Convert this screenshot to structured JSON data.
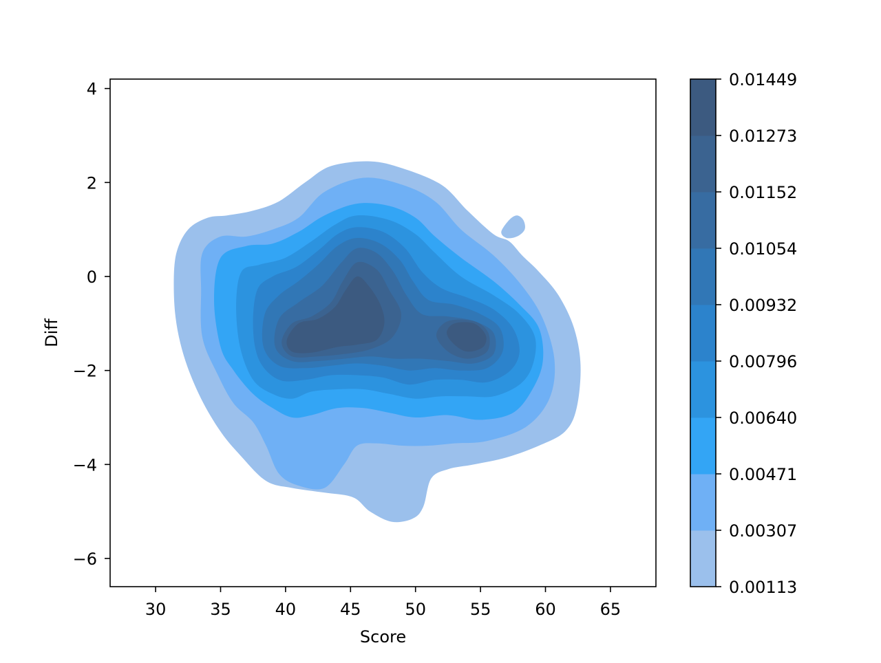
{
  "chart_data": {
    "type": "contour",
    "subtype": "filled-kde-2d",
    "title": "",
    "xlabel": "Score",
    "ylabel": "Diff",
    "xlim": [
      26.5,
      68.5
    ],
    "ylim": [
      -6.6,
      4.2
    ],
    "xticks": [
      30,
      35,
      40,
      45,
      50,
      55,
      60,
      65
    ],
    "yticks": [
      4,
      2,
      0,
      -2,
      -4,
      -6
    ],
    "xtick_labels": [
      "30",
      "35",
      "40",
      "45",
      "50",
      "55",
      "60",
      "65"
    ],
    "ytick_labels": [
      "4",
      "2",
      "0",
      "−2",
      "−4",
      "−6"
    ],
    "grid": false,
    "colorbar": {
      "levels": [
        0.00113,
        0.00307,
        0.00471,
        0.0064,
        0.00796,
        0.00932,
        0.01054,
        0.01152,
        0.01273,
        0.01449
      ],
      "tick_labels": [
        "0.00113",
        "0.00307",
        "0.00471",
        "0.00640",
        "0.00796",
        "0.00932",
        "0.01054",
        "0.01152",
        "0.01273",
        "0.01449"
      ],
      "colors": [
        "#9bc0ec",
        "#6fb0f5",
        "#33a5f5",
        "#2c93df",
        "#2c83cc",
        "#3177b6",
        "#376ca2",
        "#3b6390",
        "#3c5a80"
      ]
    },
    "contours": [
      {
        "level": 0.00113,
        "color": "#9bc0ec",
        "polygons": [
          [
            [
              46.5,
              2.45
            ],
            [
              49,
              2.3
            ],
            [
              52,
              1.95
            ],
            [
              54,
              1.4
            ],
            [
              56,
              0.9
            ],
            [
              57.2,
              0.75
            ],
            [
              58.2,
              0.45
            ],
            [
              59.5,
              0.1
            ],
            [
              61,
              -0.4
            ],
            [
              62.2,
              -1.1
            ],
            [
              62.7,
              -1.9
            ],
            [
              62.4,
              -2.8
            ],
            [
              61.5,
              -3.3
            ],
            [
              59.5,
              -3.6
            ],
            [
              57,
              -3.85
            ],
            [
              54.5,
              -4.0
            ],
            [
              52.5,
              -4.1
            ],
            [
              51.2,
              -4.3
            ],
            [
              50.6,
              -4.9
            ],
            [
              49.8,
              -5.15
            ],
            [
              48.2,
              -5.22
            ],
            [
              46.5,
              -5.0
            ],
            [
              45.2,
              -4.7
            ],
            [
              43,
              -4.6
            ],
            [
              40.5,
              -4.5
            ],
            [
              38.5,
              -4.35
            ],
            [
              36.5,
              -3.8
            ],
            [
              35,
              -3.3
            ],
            [
              33.5,
              -2.6
            ],
            [
              32.3,
              -1.8
            ],
            [
              31.6,
              -1.0
            ],
            [
              31.4,
              -0.2
            ],
            [
              31.6,
              0.5
            ],
            [
              32.5,
              1.0
            ],
            [
              34,
              1.25
            ],
            [
              35.5,
              1.3
            ],
            [
              37.5,
              1.4
            ],
            [
              39.5,
              1.6
            ],
            [
              41.5,
              2.0
            ],
            [
              43.5,
              2.35
            ]
          ],
          [
            [
              56.6,
              0.95
            ],
            [
              57.2,
              1.2
            ],
            [
              57.8,
              1.3
            ],
            [
              58.3,
              1.2
            ],
            [
              58.4,
              1.0
            ],
            [
              57.8,
              0.85
            ],
            [
              57.0,
              0.82
            ]
          ]
        ]
      },
      {
        "level": 0.00307,
        "color": "#6fb0f5",
        "polygons": [
          [
            [
              46,
              2.1
            ],
            [
              49,
              1.95
            ],
            [
              51.5,
              1.6
            ],
            [
              53.5,
              1.0
            ],
            [
              56,
              0.45
            ],
            [
              58.2,
              -0.2
            ],
            [
              59.8,
              -0.9
            ],
            [
              60.7,
              -1.8
            ],
            [
              60.3,
              -2.6
            ],
            [
              58.5,
              -3.2
            ],
            [
              55.5,
              -3.5
            ],
            [
              53,
              -3.55
            ],
            [
              51,
              -3.6
            ],
            [
              49,
              -3.6
            ],
            [
              47,
              -3.55
            ],
            [
              45.5,
              -3.6
            ],
            [
              44.5,
              -4.0
            ],
            [
              43,
              -4.5
            ],
            [
              41,
              -4.45
            ],
            [
              39.5,
              -4.2
            ],
            [
              38.5,
              -3.6
            ],
            [
              37.5,
              -3.1
            ],
            [
              36,
              -2.7
            ],
            [
              34.8,
              -2.1
            ],
            [
              33.6,
              -1.3
            ],
            [
              33.5,
              -0.3
            ],
            [
              33.6,
              0.5
            ],
            [
              35,
              0.85
            ],
            [
              37,
              0.85
            ],
            [
              39,
              1.0
            ],
            [
              41,
              1.25
            ],
            [
              43,
              1.8
            ]
          ]
        ]
      },
      {
        "level": 0.00471,
        "color": "#33a5f5",
        "polygons": [
          [
            [
              45.5,
              1.55
            ],
            [
              48,
              1.5
            ],
            [
              50,
              1.25
            ],
            [
              51.5,
              0.85
            ],
            [
              53.5,
              0.4
            ],
            [
              56,
              -0.1
            ],
            [
              58,
              -0.6
            ],
            [
              59.5,
              -1.1
            ],
            [
              59.8,
              -1.8
            ],
            [
              59,
              -2.4
            ],
            [
              57.5,
              -2.9
            ],
            [
              55,
              -3.05
            ],
            [
              52.5,
              -2.95
            ],
            [
              50,
              -3.0
            ],
            [
              48,
              -2.9
            ],
            [
              46,
              -2.8
            ],
            [
              44,
              -2.8
            ],
            [
              42,
              -2.95
            ],
            [
              40.5,
              -3.0
            ],
            [
              39,
              -2.8
            ],
            [
              37.5,
              -2.5
            ],
            [
              36,
              -2.0
            ],
            [
              35,
              -1.5
            ],
            [
              34.5,
              -0.5
            ],
            [
              35,
              0.4
            ],
            [
              37,
              0.65
            ],
            [
              39,
              0.7
            ],
            [
              41,
              0.95
            ],
            [
              43,
              1.3
            ]
          ]
        ]
      },
      {
        "level": 0.0064,
        "color": "#2c93df",
        "polygons": [
          [
            [
              45.5,
              1.3
            ],
            [
              48,
              1.2
            ],
            [
              50,
              0.9
            ],
            [
              51.5,
              0.5
            ],
            [
              53.5,
              0.0
            ],
            [
              56,
              -0.4
            ],
            [
              58,
              -0.8
            ],
            [
              59.2,
              -1.3
            ],
            [
              59,
              -1.9
            ],
            [
              58,
              -2.3
            ],
            [
              56,
              -2.55
            ],
            [
              54,
              -2.55
            ],
            [
              52,
              -2.55
            ],
            [
              50,
              -2.6
            ],
            [
              48,
              -2.5
            ],
            [
              46,
              -2.4
            ],
            [
              44,
              -2.4
            ],
            [
              42,
              -2.45
            ],
            [
              40.5,
              -2.6
            ],
            [
              39,
              -2.5
            ],
            [
              37.5,
              -2.2
            ],
            [
              36.5,
              -1.5
            ],
            [
              36.2,
              -0.6
            ],
            [
              36.6,
              0.1
            ],
            [
              38,
              0.25
            ],
            [
              40,
              0.4
            ],
            [
              42,
              0.75
            ],
            [
              43.8,
              1.1
            ]
          ]
        ]
      },
      {
        "level": 0.00796,
        "color": "#2c83cc",
        "polygons": [
          [
            [
              45.5,
              1.05
            ],
            [
              47.5,
              0.95
            ],
            [
              49.2,
              0.6
            ],
            [
              50.5,
              0.1
            ],
            [
              52,
              -0.25
            ],
            [
              54,
              -0.45
            ],
            [
              56,
              -0.7
            ],
            [
              57.5,
              -1.1
            ],
            [
              58,
              -1.6
            ],
            [
              57.3,
              -2.0
            ],
            [
              55.5,
              -2.25
            ],
            [
              53.5,
              -2.2
            ],
            [
              51.5,
              -2.2
            ],
            [
              49.5,
              -2.3
            ],
            [
              47.5,
              -2.15
            ],
            [
              45.5,
              -2.1
            ],
            [
              43.5,
              -2.1
            ],
            [
              41.5,
              -2.2
            ],
            [
              39.5,
              -2.2
            ],
            [
              38,
              -1.8
            ],
            [
              37.5,
              -1.1
            ],
            [
              37.8,
              -0.3
            ],
            [
              39,
              0.0
            ],
            [
              40.8,
              0.2
            ],
            [
              42.5,
              0.55
            ],
            [
              44,
              0.9
            ]
          ]
        ]
      },
      {
        "level": 0.00932,
        "color": "#3177b6",
        "polygons": [
          [
            [
              45.5,
              0.82
            ],
            [
              47.3,
              0.7
            ],
            [
              48.8,
              0.35
            ],
            [
              49.8,
              -0.1
            ],
            [
              51,
              -0.5
            ],
            [
              53,
              -0.6
            ],
            [
              55,
              -0.8
            ],
            [
              56.5,
              -1.1
            ],
            [
              56.7,
              -1.6
            ],
            [
              55.5,
              -1.95
            ],
            [
              53.5,
              -2.0
            ],
            [
              51.5,
              -1.95
            ],
            [
              49.5,
              -2.0
            ],
            [
              47.5,
              -1.9
            ],
            [
              45.5,
              -1.85
            ],
            [
              43.5,
              -1.9
            ],
            [
              41.5,
              -1.95
            ],
            [
              39.5,
              -1.9
            ],
            [
              38.3,
              -1.5
            ],
            [
              38.4,
              -0.8
            ],
            [
              39.5,
              -0.4
            ],
            [
              41,
              -0.1
            ],
            [
              42.5,
              0.25
            ],
            [
              44,
              0.65
            ]
          ]
        ]
      },
      {
        "level": 0.01054,
        "color": "#376ca2",
        "polygons": [
          [
            [
              45.5,
              0.6
            ],
            [
              47,
              0.5
            ],
            [
              48.3,
              0.1
            ],
            [
              49.3,
              -0.4
            ],
            [
              50.5,
              -0.8
            ],
            [
              52.5,
              -0.85
            ],
            [
              54.5,
              -0.95
            ],
            [
              56,
              -1.2
            ],
            [
              56,
              -1.65
            ],
            [
              54.5,
              -1.85
            ],
            [
              52.5,
              -1.8
            ],
            [
              50.5,
              -1.75
            ],
            [
              48.5,
              -1.75
            ],
            [
              46.5,
              -1.7
            ],
            [
              44.5,
              -1.75
            ],
            [
              42.5,
              -1.8
            ],
            [
              40.5,
              -1.8
            ],
            [
              39.2,
              -1.5
            ],
            [
              39.5,
              -0.9
            ],
            [
              41,
              -0.55
            ],
            [
              42.8,
              -0.2
            ],
            [
              44.3,
              0.3
            ]
          ]
        ]
      },
      {
        "level": 0.01152,
        "color": "#3b6390",
        "polygons": [
          [
            [
              45.5,
              0.3
            ],
            [
              47,
              0.15
            ],
            [
              48,
              -0.3
            ],
            [
              48.9,
              -0.8
            ],
            [
              48.2,
              -1.3
            ],
            [
              46.5,
              -1.55
            ],
            [
              44.5,
              -1.65
            ],
            [
              42.5,
              -1.7
            ],
            [
              40.5,
              -1.7
            ],
            [
              39.7,
              -1.4
            ],
            [
              40.5,
              -1.0
            ],
            [
              42,
              -0.85
            ],
            [
              43.5,
              -0.55
            ],
            [
              44.4,
              -0.1
            ]
          ],
          [
            [
              52.5,
              -0.95
            ],
            [
              54.5,
              -0.95
            ],
            [
              55.6,
              -1.2
            ],
            [
              55.5,
              -1.6
            ],
            [
              54,
              -1.75
            ],
            [
              52.5,
              -1.6
            ],
            [
              51.6,
              -1.25
            ]
          ]
        ]
      },
      {
        "level": 0.01273,
        "color": "#3c5a80",
        "polygons": [
          [
            [
              45.5,
              0.0
            ],
            [
              46.4,
              -0.2
            ],
            [
              47.3,
              -0.6
            ],
            [
              47.6,
              -1.0
            ],
            [
              47.0,
              -1.35
            ],
            [
              45.5,
              -1.45
            ],
            [
              44,
              -1.5
            ],
            [
              42,
              -1.62
            ],
            [
              40.5,
              -1.6
            ],
            [
              40.1,
              -1.35
            ],
            [
              41,
              -1.0
            ],
            [
              42.5,
              -0.9
            ],
            [
              43.8,
              -0.65
            ],
            [
              44.6,
              -0.3
            ]
          ],
          [
            [
              53,
              -1.0
            ],
            [
              54.5,
              -1.0
            ],
            [
              55.4,
              -1.25
            ],
            [
              55.2,
              -1.5
            ],
            [
              54,
              -1.6
            ],
            [
              53,
              -1.45
            ],
            [
              52.4,
              -1.2
            ]
          ]
        ]
      }
    ]
  }
}
